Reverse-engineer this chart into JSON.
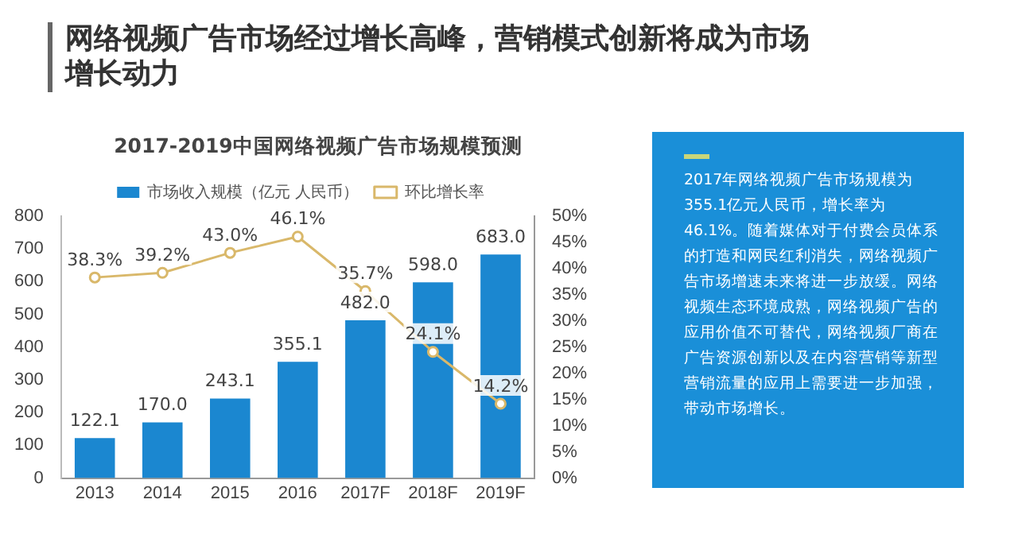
{
  "chart_data": {
    "type": "bar",
    "title": "网络视频广告市场经过增长高峰，营销模式创新将成为市场增长动力",
    "subtitle": "2017-2019中国网络视频广告市场规模预测",
    "categories": [
      "2013",
      "2014",
      "2015",
      "2016",
      "2017F",
      "2018F",
      "2019F"
    ],
    "series": [
      {
        "name": "市场收入规模（亿元 人民币）",
        "color": "#1b87d0",
        "values": [
          122.1,
          170.0,
          243.1,
          355.1,
          482.0,
          598.0,
          683.0
        ],
        "value_labels": [
          "122.1",
          "170.0",
          "243.1",
          "355.1",
          "482.0",
          "598.0",
          "683.0"
        ]
      },
      {
        "name": "环比增长率",
        "type": "line",
        "axis": "y2",
        "color": "#d9b86a",
        "values": [
          38.3,
          39.2,
          43.0,
          46.1,
          35.7,
          24.1,
          14.2
        ],
        "value_labels": [
          "38.3%",
          "39.2%",
          "43.0%",
          "46.1%",
          "35.7%",
          "24.1%",
          "14.2%"
        ]
      }
    ],
    "ylim": [
      0,
      800
    ],
    "yticks": [
      0,
      100,
      200,
      300,
      400,
      500,
      600,
      700,
      800
    ],
    "y2lim": [
      0,
      50
    ],
    "y2ticks": [
      {
        "value": 0,
        "label": "0%"
      },
      {
        "value": 5,
        "label": "5%"
      },
      {
        "value": 10,
        "label": "10%"
      },
      {
        "value": 15,
        "label": "15%"
      },
      {
        "value": 20,
        "label": "20%"
      },
      {
        "value": 25,
        "label": "25%"
      },
      {
        "value": 30,
        "label": "30%"
      },
      {
        "value": 35,
        "label": "35%"
      },
      {
        "value": 40,
        "label": "40%"
      },
      {
        "value": 45,
        "label": "45%"
      },
      {
        "value": 50,
        "label": "50%"
      }
    ],
    "grid": false,
    "legend": "top",
    "marker": "circle",
    "line_style": "solid",
    "annotations": [
      "2017年网络视频广告市场规模为355.1亿元人民币，增长率为46.1%。随着媒体对于付费会员体系的打造和网民红利消失，网络视频广告市场增速未来将进一步放缓。网络视频生态环境成熟，网络视频广告的应用价值不可替代，网络视频厂商在广告资源创新以及在内容营销等新型营销流量的应用上需要进一步加强，带动市场增长。"
    ]
  }
}
